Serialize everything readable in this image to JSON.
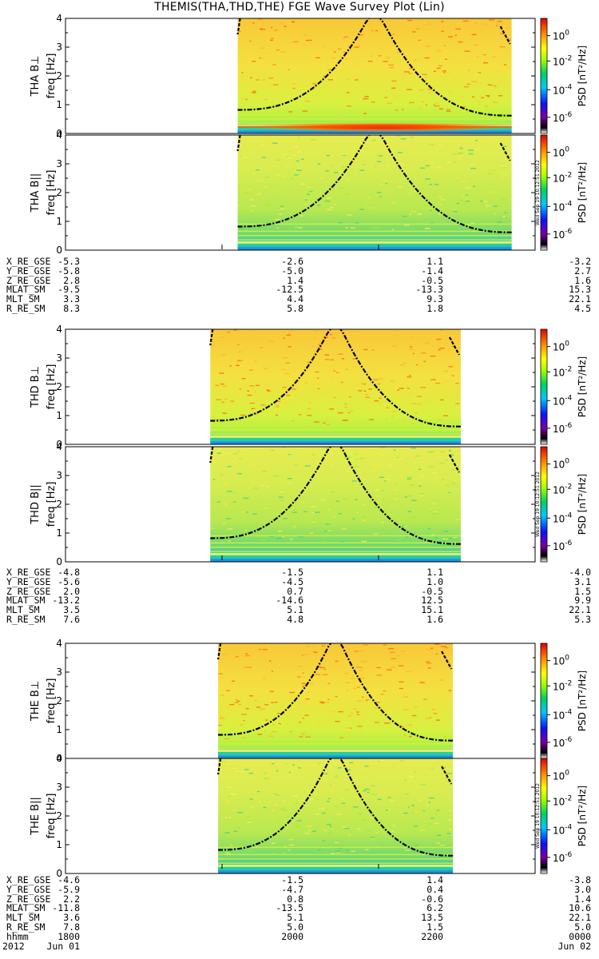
{
  "title": "THEMIS(THA,THD,THE) FGE Wave Survey Plot (Lin)",
  "chart_data": {
    "type": "heatmap",
    "x_axis": {
      "label": "hhmm",
      "ticks": [
        "1800",
        "2000",
        "2200",
        "0000"
      ],
      "date_left": "2012",
      "date_start": "Jun 01",
      "date_end": "Jun 02",
      "range_hours_utc": [
        18,
        24
      ]
    },
    "colorbar": {
      "label": "PSD [nT²/Hz]",
      "scale": "log",
      "ticks": [
        {
          "base": "10",
          "exp": "0"
        },
        {
          "base": "10",
          "exp": "-2"
        },
        {
          "base": "10",
          "exp": "-4"
        },
        {
          "base": "10",
          "exp": "-6"
        }
      ]
    },
    "timestamp": "Wed Sep 19 10:12:51 2012",
    "panels": [
      {
        "probe": "THA",
        "component": "B⊥",
        "ylabel_top": "THA B⊥",
        "ylabel": "freq [Hz]",
        "yticks": [
          "0",
          "1",
          "2",
          "3",
          "4"
        ],
        "ylim": [
          0,
          4
        ],
        "data_start_hour": 20.2,
        "data_end_hour": 23.7
      },
      {
        "probe": "THA",
        "component": "B||",
        "ylabel_top": "THA B||",
        "ylabel": "freq [Hz]",
        "yticks": [
          "0",
          "1",
          "2",
          "3",
          "4"
        ],
        "ylim": [
          0,
          4
        ],
        "data_start_hour": 20.2,
        "data_end_hour": 23.7
      },
      {
        "probe": "THD",
        "component": "B⊥",
        "ylabel_top": "THD B⊥",
        "ylabel": "freq [Hz]",
        "yticks": [
          "0",
          "1",
          "2",
          "3",
          "4"
        ],
        "ylim": [
          0,
          4
        ],
        "data_start_hour": 19.85,
        "data_end_hour": 23.05
      },
      {
        "probe": "THD",
        "component": "B||",
        "ylabel_top": "THD B||",
        "ylabel": "freq [Hz]",
        "yticks": [
          "0",
          "1",
          "2",
          "3",
          "4"
        ],
        "ylim": [
          0,
          4
        ],
        "data_start_hour": 19.85,
        "data_end_hour": 23.05
      },
      {
        "probe": "THE",
        "component": "B⊥",
        "ylabel_top": "THE B⊥",
        "ylabel": "freq [Hz]",
        "yticks": [
          "0",
          "1",
          "2",
          "3",
          "4"
        ],
        "ylim": [
          0,
          4
        ],
        "data_start_hour": 19.95,
        "data_end_hour": 22.95
      },
      {
        "probe": "THE",
        "component": "B||",
        "ylabel_top": "THE B||",
        "ylabel": "freq [Hz]",
        "yticks": [
          "0",
          "1",
          "2",
          "3",
          "4"
        ],
        "ylim": [
          0,
          4
        ],
        "data_start_hour": 19.95,
        "data_end_hour": 22.95
      }
    ],
    "ephemeris": [
      {
        "rows": [
          {
            "name": "X_RE_GSE",
            "values": [
              "-5.3",
              "-2.6",
              "1.1",
              "-3.2"
            ]
          },
          {
            "name": "Y_RE_GSE",
            "values": [
              "-5.8",
              "-5.0",
              "-1.4",
              "2.7"
            ]
          },
          {
            "name": "Z_RE_GSE",
            "values": [
              "2.8",
              "1.4",
              "-0.5",
              "1.6"
            ]
          },
          {
            "name": "MLAT_SM",
            "values": [
              "-9.5",
              "-12.5",
              "-13.3",
              "15.3"
            ]
          },
          {
            "name": "MLT_SM",
            "values": [
              "3.3",
              "4.4",
              "9.3",
              "22.1"
            ]
          },
          {
            "name": "R_RE_SM",
            "values": [
              "8.3",
              "5.8",
              "1.8",
              "4.5"
            ]
          }
        ]
      },
      {
        "rows": [
          {
            "name": "X_RE_GSE",
            "values": [
              "-4.8",
              "-1.5",
              "1.1",
              "-4.0"
            ]
          },
          {
            "name": "Y_RE_GSE",
            "values": [
              "-5.6",
              "-4.5",
              "1.0",
              "3.1"
            ]
          },
          {
            "name": "Z_RE_GSE",
            "values": [
              "2.0",
              "0.7",
              "-0.5",
              "1.5"
            ]
          },
          {
            "name": "MLAT_SM",
            "values": [
              "-13.2",
              "-14.6",
              "12.5",
              "9.9"
            ]
          },
          {
            "name": "MLT_SM",
            "values": [
              "3.5",
              "5.1",
              "15.1",
              "22.1"
            ]
          },
          {
            "name": "R_RE_SM",
            "values": [
              "7.6",
              "4.8",
              "1.6",
              "5.3"
            ]
          }
        ]
      },
      {
        "rows": [
          {
            "name": "X_RE_GSE",
            "values": [
              "-4.6",
              "-1.5",
              "1.4",
              "-3.8"
            ]
          },
          {
            "name": "Y_RE_GSE",
            "values": [
              "-5.9",
              "-4.7",
              "0.4",
              "3.0"
            ]
          },
          {
            "name": "Z_RE_GSE",
            "values": [
              "2.2",
              "0.8",
              "-0.6",
              "1.4"
            ]
          },
          {
            "name": "MLAT_SM",
            "values": [
              "-11.8",
              "-13.5",
              "6.2",
              "10.6"
            ]
          },
          {
            "name": "MLT_SM",
            "values": [
              "3.6",
              "5.1",
              "13.5",
              "22.1"
            ]
          },
          {
            "name": "R_RE_SM",
            "values": [
              "7.8",
              "5.0",
              "1.5",
              "5.0"
            ]
          }
        ]
      }
    ]
  }
}
